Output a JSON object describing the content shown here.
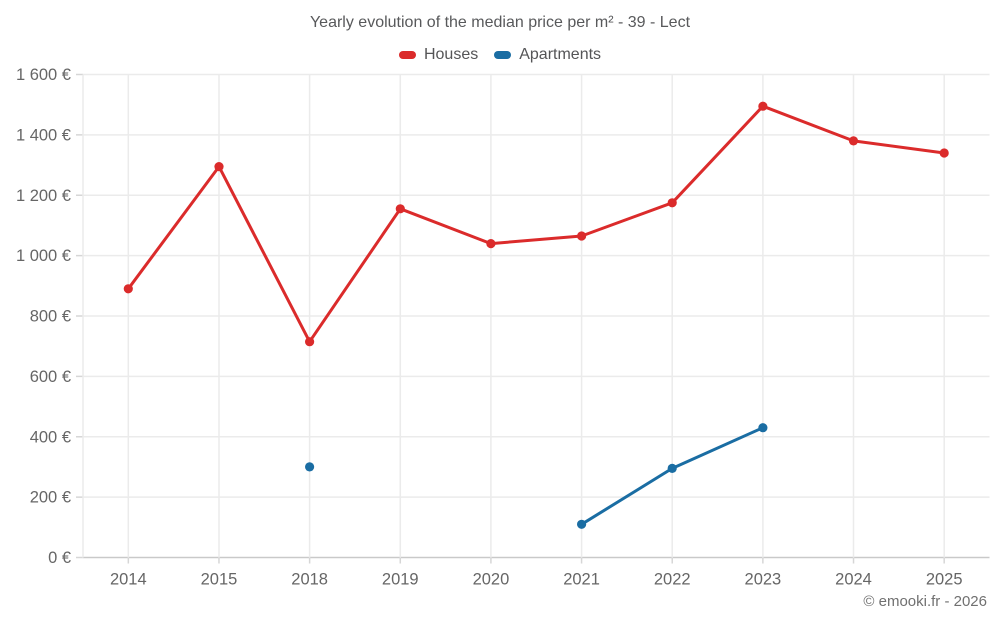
{
  "title": "Yearly evolution of the median price per m² - 39 - Lect",
  "footer": "© emooki.fr - 2026",
  "colors": {
    "houses": "#db2b2b",
    "apartments": "#1a6da3",
    "grid": "#ebebeb",
    "axis": "#c9c9c9",
    "tick": "#d6d6d6",
    "axis_text": "#666666",
    "title_text": "#58595b",
    "footer_text": "#707070"
  },
  "chart_data": {
    "type": "line",
    "title": "Yearly evolution of the median price per m² - 39 - Lect",
    "categories": [
      "2014",
      "2015",
      "2018",
      "2019",
      "2020",
      "2021",
      "2022",
      "2023",
      "2024",
      "2025"
    ],
    "series": [
      {
        "name": "Houses",
        "color_key": "houses",
        "values": [
          890,
          1295,
          715,
          1155,
          1040,
          1065,
          1175,
          1495,
          1380,
          1340
        ]
      },
      {
        "name": "Apartments",
        "color_key": "apartments",
        "values": [
          null,
          null,
          300,
          null,
          null,
          110,
          295,
          430,
          null,
          null
        ]
      }
    ],
    "xlabel": "",
    "ylabel": "",
    "ylim": [
      0,
      1600
    ],
    "ytick_values": [
      0,
      200,
      400,
      600,
      800,
      1000,
      1200,
      1400,
      1600
    ],
    "ytick_labels": [
      "0 €",
      "200 €",
      "400 €",
      "600 €",
      "800 €",
      "1 000 €",
      "1 200 €",
      "1 400 €",
      "1 600 €"
    ],
    "grid": true,
    "legend_position": "top"
  }
}
